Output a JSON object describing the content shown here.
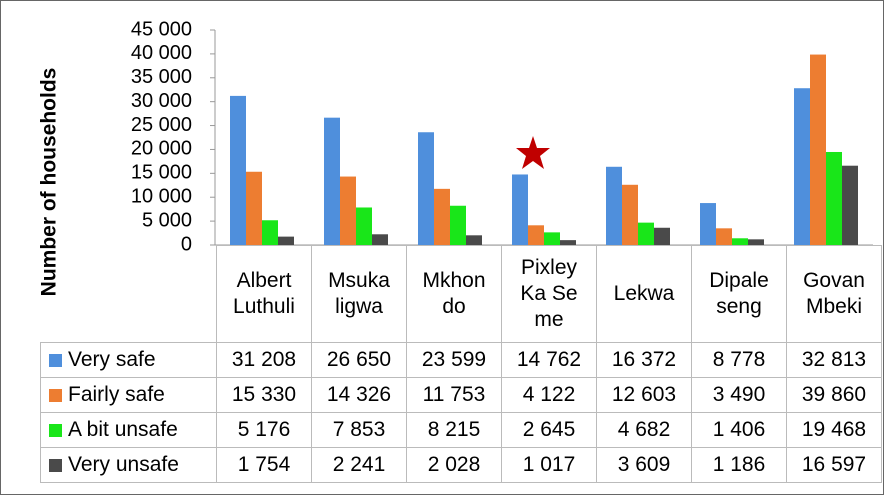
{
  "chart_data": {
    "type": "bar",
    "y_label": "Number of households",
    "categories": [
      "Albert Luthuli",
      "Msukaligwa",
      "Mkhondo",
      "Pixley Ka Seme",
      "Lekwa",
      "Dipaleseng",
      "Govan Mbeki"
    ],
    "series": [
      {
        "name": "Very safe",
        "color": "#4f8fdc",
        "values": [
          31208,
          26650,
          23599,
          14762,
          16372,
          8778,
          32813
        ],
        "value_labels": [
          "31 208",
          "26 650",
          "23 599",
          "14 762",
          "16 372",
          "8 778",
          "32 813"
        ]
      },
      {
        "name": "Fairly safe",
        "color": "#ed7d31",
        "values": [
          15330,
          14326,
          11753,
          4122,
          12603,
          3490,
          39860
        ],
        "value_labels": [
          "15 330",
          "14 326",
          "11 753",
          "4 122",
          "12 603",
          "3 490",
          "39 860"
        ]
      },
      {
        "name": "A bit unsafe",
        "color": "#19e619",
        "values": [
          5176,
          7853,
          8215,
          2645,
          4682,
          1406,
          19468
        ],
        "value_labels": [
          "5 176",
          "7 853",
          "8 215",
          "2 645",
          "4 682",
          "1 406",
          "19 468"
        ]
      },
      {
        "name": "Very unsafe",
        "color": "#4a4a4a",
        "values": [
          1754,
          2241,
          2028,
          1017,
          3609,
          1186,
          16597
        ],
        "value_labels": [
          "1 754",
          "2 241",
          "2 028",
          "1 017",
          "3 609",
          "1 186",
          "16 597"
        ]
      }
    ],
    "ylim": [
      0,
      45000
    ],
    "yticks": [
      0,
      {
        "value": 5000,
        "label": "5 000"
      },
      {
        "value": 10000,
        "label": "10 000"
      },
      {
        "value": 15000,
        "label": "15 000"
      },
      {
        "value": 20000,
        "label": "20 000"
      },
      {
        "value": 25000,
        "label": "25 000"
      },
      {
        "value": 30000,
        "label": "30 000"
      },
      {
        "value": 35000,
        "label": "35 000"
      },
      {
        "value": 40000,
        "label": "40 000"
      },
      {
        "value": 45000,
        "label": "45 000"
      }
    ],
    "grid": false
  }
}
